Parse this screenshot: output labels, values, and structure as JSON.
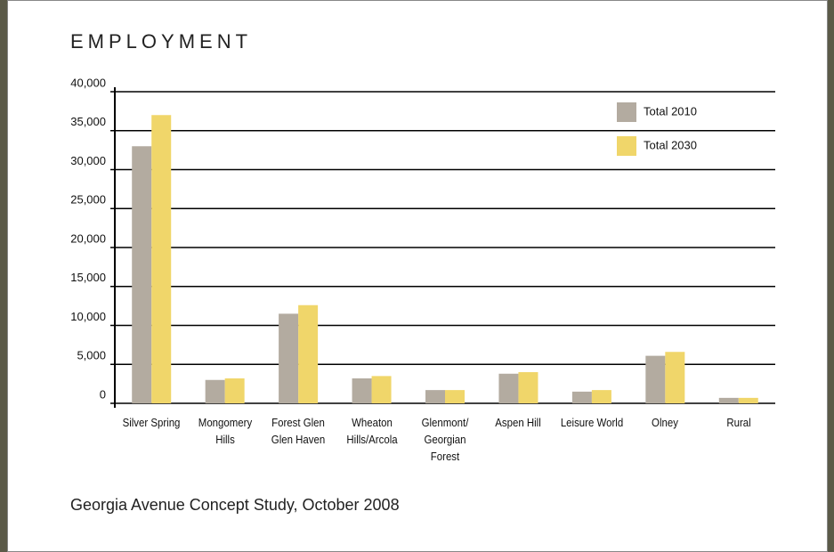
{
  "chart_data": {
    "type": "bar",
    "title": "EMPLOYMENT",
    "subtitle": "Georgia Avenue Concept Study, October 2008",
    "categories": [
      "Silver Spring",
      "Mongomery\nHills",
      "Forest Glen\nGlen Haven",
      "Wheaton\nHills/Arcola",
      "Glenmont/\nGeorgian\nForest",
      "Aspen Hill",
      "Leisure World",
      "Olney",
      "Rural"
    ],
    "series": [
      {
        "name": "Total 2010",
        "color": "#b3aba0",
        "values": [
          33000,
          3000,
          11500,
          3200,
          1700,
          3800,
          1500,
          6100,
          700
        ]
      },
      {
        "name": "Total 2030",
        "color": "#f0d66a",
        "values": [
          37000,
          3200,
          12600,
          3500,
          1700,
          4000,
          1700,
          6600,
          700
        ]
      }
    ],
    "ylim": [
      0,
      40000
    ],
    "yticks": [
      0,
      {
        "value": 5000,
        "label": "5,000"
      },
      {
        "value": 10000,
        "label": "10,000"
      },
      {
        "value": 15000,
        "label": "15,000"
      },
      {
        "value": 20000,
        "label": "20,000"
      },
      {
        "value": 25000,
        "label": "25,000"
      },
      {
        "value": 30000,
        "label": "30,000"
      },
      {
        "value": 35000,
        "label": "35,000"
      },
      {
        "value": 40000,
        "label": "40,000"
      }
    ],
    "grid": true,
    "legend": "top-right"
  }
}
